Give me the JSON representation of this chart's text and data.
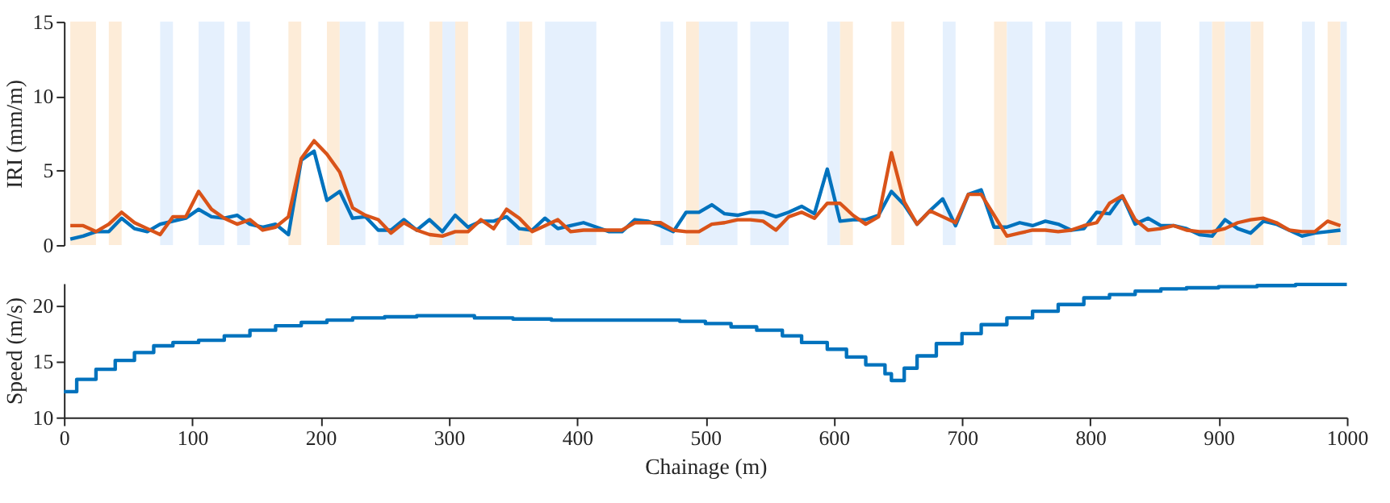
{
  "chart_data": [
    {
      "type": "line",
      "ylabel": "IRI (mm/m)",
      "xlim": [
        0,
        1000
      ],
      "xticks": [
        0,
        100,
        200,
        300,
        400,
        500,
        600,
        700,
        800,
        900,
        1000
      ],
      "ylim": [
        0,
        15
      ],
      "yticks": [
        0,
        5,
        10,
        15
      ],
      "tick_labels": "y",
      "grid": false,
      "line_style": "solid",
      "x": [
        5,
        15,
        25,
        35,
        45,
        55,
        65,
        75,
        85,
        95,
        105,
        115,
        125,
        135,
        145,
        155,
        165,
        175,
        185,
        195,
        205,
        215,
        225,
        235,
        245,
        255,
        265,
        275,
        285,
        295,
        305,
        315,
        325,
        335,
        345,
        355,
        365,
        375,
        385,
        395,
        405,
        415,
        425,
        435,
        445,
        455,
        465,
        475,
        485,
        495,
        505,
        515,
        525,
        535,
        545,
        555,
        565,
        575,
        585,
        595,
        605,
        615,
        625,
        635,
        645,
        655,
        665,
        675,
        685,
        695,
        705,
        715,
        725,
        735,
        745,
        755,
        765,
        775,
        785,
        795,
        805,
        815,
        825,
        835,
        845,
        855,
        865,
        875,
        885,
        895,
        905,
        915,
        925,
        935,
        945,
        955,
        965,
        975,
        985,
        995
      ],
      "series": [
        {
          "color": "#0072bd",
          "values": [
            0.4,
            0.6,
            0.9,
            0.9,
            1.8,
            1.1,
            0.9,
            1.4,
            1.6,
            1.8,
            2.4,
            1.9,
            1.8,
            2.0,
            1.4,
            1.2,
            1.4,
            0.7,
            5.7,
            6.3,
            3.0,
            3.6,
            1.8,
            1.9,
            1.0,
            1.0,
            1.7,
            1.0,
            1.7,
            0.9,
            2.0,
            1.2,
            1.6,
            1.6,
            1.9,
            1.1,
            1.0,
            1.8,
            1.1,
            1.3,
            1.5,
            1.2,
            0.9,
            0.9,
            1.7,
            1.6,
            1.3,
            0.9,
            2.2,
            2.2,
            2.7,
            2.1,
            2.0,
            2.2,
            2.2,
            1.9,
            2.2,
            2.6,
            2.1,
            5.1,
            1.6,
            1.7,
            1.7,
            2.0,
            3.6,
            2.7,
            1.4,
            2.3,
            3.1,
            1.3,
            3.4,
            3.7,
            1.2,
            1.2,
            1.5,
            1.3,
            1.6,
            1.4,
            1.0,
            1.1,
            2.2,
            2.1,
            3.3,
            1.4,
            1.8,
            1.3,
            1.3,
            1.1,
            0.7,
            0.6,
            1.7,
            1.1,
            0.8,
            1.6,
            1.4,
            1.0,
            0.6,
            0.8,
            0.9,
            1.0
          ]
        },
        {
          "color": "#d95319",
          "values": [
            1.3,
            1.3,
            0.9,
            1.4,
            2.2,
            1.5,
            1.1,
            0.7,
            1.9,
            1.9,
            3.6,
            2.4,
            1.8,
            1.4,
            1.7,
            1.0,
            1.2,
            1.9,
            5.8,
            7.0,
            6.1,
            4.9,
            2.5,
            2.0,
            1.7,
            0.8,
            1.5,
            1.0,
            0.7,
            0.6,
            0.9,
            0.9,
            1.7,
            1.1,
            2.4,
            1.8,
            0.9,
            1.3,
            1.7,
            0.9,
            1.0,
            1.0,
            1.0,
            1.0,
            1.5,
            1.5,
            1.5,
            1.0,
            0.9,
            0.9,
            1.4,
            1.5,
            1.7,
            1.7,
            1.6,
            1.0,
            1.9,
            2.2,
            1.8,
            2.8,
            2.8,
            2.0,
            1.4,
            1.9,
            6.2,
            2.9,
            1.4,
            2.3,
            1.9,
            1.5,
            3.4,
            3.4,
            2.0,
            0.6,
            0.8,
            1.0,
            1.0,
            0.9,
            1.0,
            1.3,
            1.5,
            2.8,
            3.3,
            1.7,
            1.0,
            1.1,
            1.3,
            1.0,
            0.9,
            0.9,
            1.1,
            1.5,
            1.7,
            1.8,
            1.5,
            1.0,
            0.9,
            0.9,
            1.6,
            1.3
          ]
        }
      ],
      "bands": [
        {
          "axis": "x",
          "from": 5,
          "to": 25,
          "color": "#fdecd8"
        },
        {
          "axis": "x",
          "from": 35,
          "to": 45,
          "color": "#fdecd8"
        },
        {
          "axis": "x",
          "from": 75,
          "to": 85,
          "color": "#e5f0fd"
        },
        {
          "axis": "x",
          "from": 105,
          "to": 125,
          "color": "#e5f0fd"
        },
        {
          "axis": "x",
          "from": 135,
          "to": 145,
          "color": "#e5f0fd"
        },
        {
          "axis": "x",
          "from": 175,
          "to": 185,
          "color": "#fdecd8"
        },
        {
          "axis": "x",
          "from": 205,
          "to": 215,
          "color": "#fdecd8"
        },
        {
          "axis": "x",
          "from": 215,
          "to": 235,
          "color": "#e5f0fd"
        },
        {
          "axis": "x",
          "from": 245,
          "to": 265,
          "color": "#e5f0fd"
        },
        {
          "axis": "x",
          "from": 285,
          "to": 295,
          "color": "#fdecd8"
        },
        {
          "axis": "x",
          "from": 295,
          "to": 305,
          "color": "#e5f0fd"
        },
        {
          "axis": "x",
          "from": 305,
          "to": 315,
          "color": "#fdecd8"
        },
        {
          "axis": "x",
          "from": 345,
          "to": 355,
          "color": "#e5f0fd"
        },
        {
          "axis": "x",
          "from": 355,
          "to": 365,
          "color": "#fdecd8"
        },
        {
          "axis": "x",
          "from": 375,
          "to": 415,
          "color": "#e5f0fd"
        },
        {
          "axis": "x",
          "from": 465,
          "to": 475,
          "color": "#e5f0fd"
        },
        {
          "axis": "x",
          "from": 485,
          "to": 495,
          "color": "#fdecd8"
        },
        {
          "axis": "x",
          "from": 495,
          "to": 525,
          "color": "#e5f0fd"
        },
        {
          "axis": "x",
          "from": 535,
          "to": 565,
          "color": "#e5f0fd"
        },
        {
          "axis": "x",
          "from": 595,
          "to": 605,
          "color": "#e5f0fd"
        },
        {
          "axis": "x",
          "from": 605,
          "to": 615,
          "color": "#fdecd8"
        },
        {
          "axis": "x",
          "from": 645,
          "to": 655,
          "color": "#fdecd8"
        },
        {
          "axis": "x",
          "from": 685,
          "to": 695,
          "color": "#e5f0fd"
        },
        {
          "axis": "x",
          "from": 725,
          "to": 735,
          "color": "#fdecd8"
        },
        {
          "axis": "x",
          "from": 735,
          "to": 755,
          "color": "#e5f0fd"
        },
        {
          "axis": "x",
          "from": 765,
          "to": 785,
          "color": "#e5f0fd"
        },
        {
          "axis": "x",
          "from": 805,
          "to": 825,
          "color": "#e5f0fd"
        },
        {
          "axis": "x",
          "from": 835,
          "to": 855,
          "color": "#e5f0fd"
        },
        {
          "axis": "x",
          "from": 885,
          "to": 895,
          "color": "#e5f0fd"
        },
        {
          "axis": "x",
          "from": 895,
          "to": 905,
          "color": "#fdecd8"
        },
        {
          "axis": "x",
          "from": 905,
          "to": 925,
          "color": "#e5f0fd"
        },
        {
          "axis": "x",
          "from": 925,
          "to": 935,
          "color": "#fdecd8"
        },
        {
          "axis": "x",
          "from": 965,
          "to": 975,
          "color": "#e5f0fd"
        },
        {
          "axis": "x",
          "from": 985,
          "to": 995,
          "color": "#fdecd8"
        },
        {
          "axis": "x",
          "from": 995,
          "to": 1000,
          "color": "#e5f0fd"
        }
      ]
    },
    {
      "type": "step",
      "xlabel": "Chainage (m)",
      "ylabel": "Speed (m/s)",
      "xlim": [
        0,
        1000
      ],
      "xticks": [
        0,
        100,
        200,
        300,
        400,
        500,
        600,
        700,
        800,
        900,
        1000
      ],
      "ylim": [
        10,
        22
      ],
      "yticks": [
        10,
        15,
        20
      ],
      "grid": false,
      "line_style": "solid",
      "x": [
        0,
        10,
        25,
        40,
        55,
        70,
        85,
        105,
        125,
        145,
        165,
        185,
        205,
        225,
        250,
        275,
        320,
        350,
        380,
        480,
        500,
        520,
        540,
        560,
        575,
        595,
        610,
        625,
        640,
        645,
        655,
        665,
        680,
        700,
        715,
        735,
        755,
        775,
        795,
        815,
        835,
        855,
        875,
        900,
        930,
        960,
        1000
      ],
      "series": [
        {
          "color": "#0072bd",
          "values": [
            12.3,
            13.4,
            14.3,
            15.1,
            15.8,
            16.4,
            16.7,
            16.9,
            17.3,
            17.8,
            18.2,
            18.5,
            18.7,
            18.9,
            19.0,
            19.1,
            18.9,
            18.8,
            18.7,
            18.6,
            18.4,
            18.1,
            17.8,
            17.3,
            16.7,
            16.1,
            15.4,
            14.7,
            13.9,
            13.3,
            14.4,
            15.5,
            16.6,
            17.5,
            18.3,
            18.9,
            19.5,
            20.1,
            20.7,
            21.0,
            21.3,
            21.5,
            21.6,
            21.7,
            21.8,
            21.9,
            21.9
          ]
        }
      ]
    }
  ]
}
